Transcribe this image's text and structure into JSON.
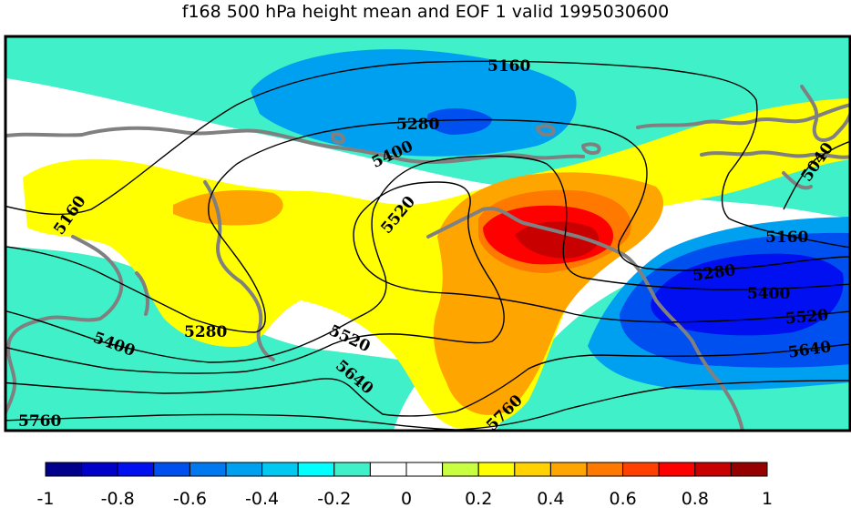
{
  "title": "f168 500 hPa height mean and EOF 1 valid 1995030600",
  "legend": {
    "levels": [
      -1,
      -0.9,
      -0.8,
      -0.7,
      -0.6,
      -0.5,
      -0.4,
      -0.3,
      -0.2,
      -0.1,
      0,
      0.1,
      0.2,
      0.3,
      0.4,
      0.5,
      0.6,
      0.7,
      0.8,
      0.9,
      1
    ],
    "tick_labels": [
      "-1",
      "-0.8",
      "-0.6",
      "-0.4",
      "-0.2",
      "0",
      "0.2",
      "0.4",
      "0.6",
      "0.8",
      "1"
    ],
    "colors": [
      "#00008c",
      "#0000c8",
      "#0010f0",
      "#0050f0",
      "#0078f0",
      "#00a0f0",
      "#00c8f0",
      "#00ffff",
      "#40f0c8",
      "#ffffff",
      "#ffffff",
      "#c8ff40",
      "#ffff00",
      "#ffd200",
      "#ffa500",
      "#ff7800",
      "#ff4000",
      "#ff0000",
      "#c80000",
      "#960000"
    ]
  },
  "palette": {
    "cyan": "#40f0c8",
    "lightblue": "#00a0f0",
    "blue": "#0050f0",
    "darkblue": "#0010f0",
    "yellow": "#ffff00",
    "lightorange": "#ffa500",
    "orange": "#ff7800",
    "red": "#ff0000",
    "darkred": "#c80000",
    "coastline": "#808080",
    "contour": "#000000"
  },
  "contour_labels": [
    {
      "text": "5160"
    },
    {
      "text": "5280"
    },
    {
      "text": "5400"
    },
    {
      "text": "5520"
    },
    {
      "text": "5160"
    },
    {
      "text": "5280"
    },
    {
      "text": "5400"
    },
    {
      "text": "5520"
    },
    {
      "text": "5640"
    },
    {
      "text": "5760"
    },
    {
      "text": "5040"
    },
    {
      "text": "5160"
    },
    {
      "text": "5280"
    },
    {
      "text": "5400"
    },
    {
      "text": "5520"
    },
    {
      "text": "5640"
    },
    {
      "text": "5760"
    }
  ]
}
